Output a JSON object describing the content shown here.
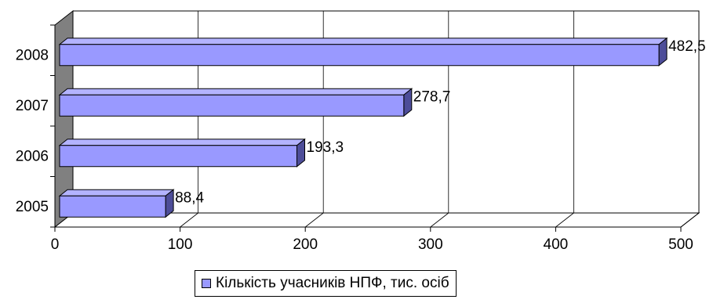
{
  "chart_data": {
    "type": "bar",
    "orientation": "horizontal",
    "style": "3d",
    "categories": [
      "2005",
      "2006",
      "2007",
      "2008"
    ],
    "series": [
      {
        "name": "Кількість учасників НПФ, тис. осіб",
        "values": [
          88.4,
          193.3,
          278.7,
          482.5
        ],
        "value_labels": [
          "88,4",
          "193,3",
          "278,7",
          "482,5"
        ]
      }
    ],
    "xlim": [
      0,
      500
    ],
    "x_ticks": [
      0,
      100,
      200,
      300,
      400,
      500
    ],
    "x_tick_labels": [
      "0",
      "100",
      "200",
      "300",
      "400",
      "500"
    ],
    "grid": true,
    "legend_position": "bottom",
    "colors": {
      "bar_front": "#9999FF",
      "bar_top": "#B3B3FF",
      "bar_side": "#4D4D99",
      "side_wall": "#808080",
      "grid": "#000000"
    }
  }
}
